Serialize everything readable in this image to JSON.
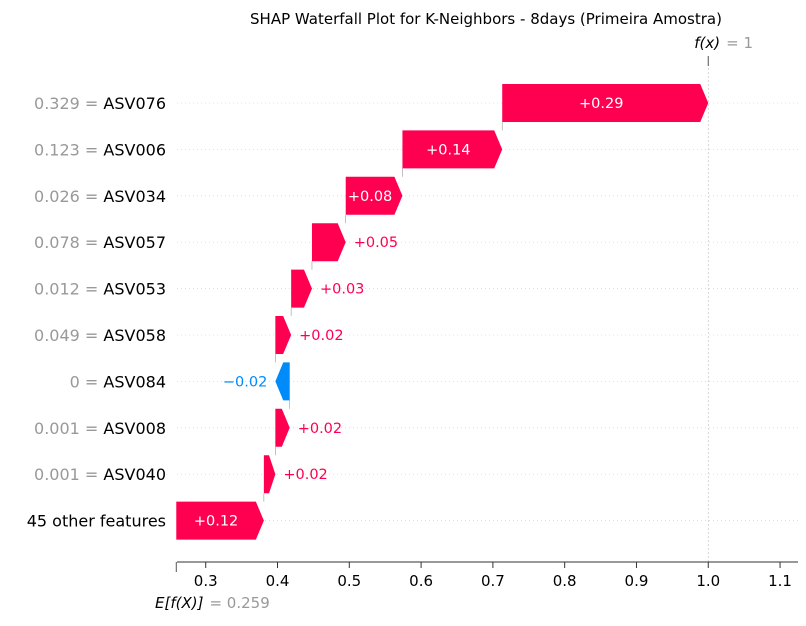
{
  "chart_data": {
    "type": "waterfall",
    "title": "SHAP Waterfall Plot for K-Neighbors - 8days (Primeira Amostra)",
    "xlim": [
      0.26,
      1.125
    ],
    "x_ticks": [
      0.3,
      0.4,
      0.5,
      0.6,
      0.7,
      0.8,
      0.9,
      1.0,
      1.1
    ],
    "x_tick_labels": [
      "0.3",
      "0.4",
      "0.5",
      "0.6",
      "0.7",
      "0.8",
      "0.9",
      "1.0",
      "1.1"
    ],
    "base_value": 0.259,
    "output_value": 1,
    "fx_label": "f(x)",
    "fx_value_text": "= 1",
    "ex_label": "E[f(X)]",
    "ex_value_text": "= 0.259",
    "colors": {
      "positive": "#ff0051",
      "negative": "#008bfb",
      "muted": "#999999",
      "text": "#000000"
    },
    "features": [
      {
        "value_label": "0.329",
        "name": "ASV076",
        "shap": 0.29,
        "label": "+0.29",
        "start": 0.713,
        "end": 1.0
      },
      {
        "value_label": "0.123",
        "name": "ASV006",
        "shap": 0.14,
        "label": "+0.14",
        "start": 0.574,
        "end": 0.713
      },
      {
        "value_label": "0.026",
        "name": "ASV034",
        "shap": 0.08,
        "label": "+0.08",
        "start": 0.495,
        "end": 0.574
      },
      {
        "value_label": "0.078",
        "name": "ASV057",
        "shap": 0.05,
        "label": "+0.05",
        "start": 0.448,
        "end": 0.495
      },
      {
        "value_label": "0.012",
        "name": "ASV053",
        "shap": 0.03,
        "label": "+0.03",
        "start": 0.419,
        "end": 0.448
      },
      {
        "value_label": "0.049",
        "name": "ASV058",
        "shap": 0.02,
        "label": "+0.02",
        "start": 0.397,
        "end": 0.419
      },
      {
        "value_label": "0",
        "name": "ASV084",
        "shap": -0.02,
        "label": "−0.02",
        "start": 0.417,
        "end": 0.397
      },
      {
        "value_label": "0.001",
        "name": "ASV008",
        "shap": 0.02,
        "label": "+0.02",
        "start": 0.397,
        "end": 0.417
      },
      {
        "value_label": "0.001",
        "name": "ASV040",
        "shap": 0.02,
        "label": "+0.02",
        "start": 0.381,
        "end": 0.397
      },
      {
        "value_label": "",
        "name": "45 other features",
        "shap": 0.12,
        "label": "+0.12",
        "start": 0.259,
        "end": 0.381
      }
    ]
  }
}
